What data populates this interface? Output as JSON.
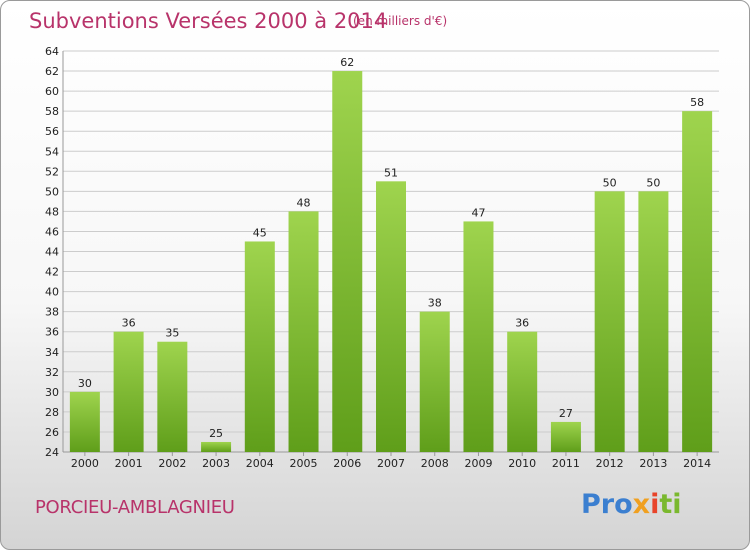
{
  "header": {
    "title": "Subventions Versées 2000 à 2014",
    "subtitle": "(en milliers d'€)"
  },
  "footer": {
    "commune": "PORCIEU-AMBLAGNIEU",
    "logo": [
      "Pro",
      "x",
      "i",
      "ti"
    ]
  },
  "colors": {
    "title": "#b8336a",
    "bar_top": "#9fd44e",
    "bar_bottom": "#5f9e1a",
    "grid": "#cccccc"
  },
  "chart_data": {
    "type": "bar",
    "categories": [
      "2000",
      "2001",
      "2002",
      "2003",
      "2004",
      "2005",
      "2006",
      "2007",
      "2008",
      "2009",
      "2010",
      "2011",
      "2012",
      "2013",
      "2014"
    ],
    "values": [
      30,
      36,
      35,
      25,
      45,
      48,
      62,
      51,
      38,
      47,
      36,
      27,
      50,
      50,
      58
    ],
    "title": "Subventions Versées 2000 à 2014",
    "subtitle": "(en milliers d'€)",
    "xlabel": "",
    "ylabel": "",
    "ylim": [
      24,
      64
    ],
    "yticks": [
      24,
      26,
      28,
      30,
      32,
      34,
      36,
      38,
      40,
      42,
      44,
      46,
      48,
      50,
      52,
      54,
      56,
      58,
      60,
      62,
      64
    ],
    "grid": true,
    "legend": "none"
  }
}
